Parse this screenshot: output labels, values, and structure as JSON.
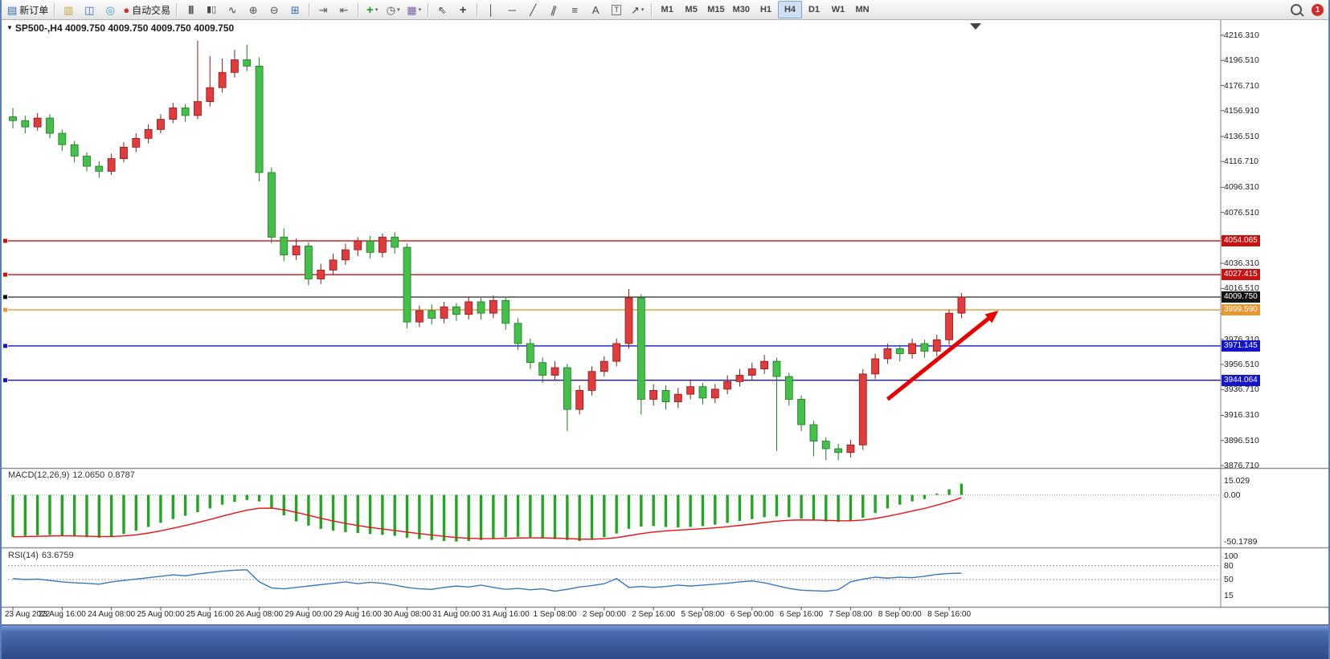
{
  "toolbar": {
    "items": [
      {
        "t": "btn",
        "name": "new-order-button",
        "glyph": "▤",
        "color": "#2f6db8",
        "label": "新订单"
      },
      {
        "t": "sep"
      },
      {
        "t": "btn",
        "name": "charts-cascade-button",
        "glyph": "▥",
        "color": "#c8a63c"
      },
      {
        "t": "btn",
        "name": "market-watch-button",
        "glyph": "◫",
        "color": "#2f6db8"
      },
      {
        "t": "btn",
        "name": "navigator-button",
        "glyph": "◎",
        "color": "#2e9bbf"
      },
      {
        "t": "btn",
        "name": "autotrading-button",
        "glyph": "●",
        "color": "#d03030",
        "label": "自动交易"
      },
      {
        "t": "sep"
      },
      {
        "t": "btn",
        "name": "bar-chart-button",
        "glyph": "|||",
        "color": "#444",
        "cls": "bars"
      },
      {
        "t": "btn",
        "name": "candle-chart-button",
        "glyph": "▮▯",
        "color": "#444",
        "cls": "small"
      },
      {
        "t": "btn",
        "name": "line-chart-button",
        "glyph": "∿",
        "color": "#444"
      },
      {
        "t": "btn",
        "name": "zoom-in-button",
        "glyph": "⊕",
        "color": "#555"
      },
      {
        "t": "btn",
        "name": "zoom-out-button",
        "glyph": "⊖",
        "color": "#555"
      },
      {
        "t": "btn",
        "name": "tile-windows-button",
        "glyph": "⊞",
        "color": "#2f6db8"
      },
      {
        "t": "sep"
      },
      {
        "t": "btn",
        "name": "chart-shift-button",
        "glyph": "⇥",
        "color": "#555"
      },
      {
        "t": "btn",
        "name": "auto-scroll-button",
        "glyph": "⇤",
        "color": "#555"
      },
      {
        "t": "sep"
      },
      {
        "t": "btn",
        "name": "indicators-button",
        "glyph": "+",
        "color": "#18a018",
        "cls": "plus",
        "caret": true
      },
      {
        "t": "btn",
        "name": "periods-button",
        "glyph": "◷",
        "color": "#555",
        "caret": true
      },
      {
        "t": "btn",
        "name": "templates-button",
        "glyph": "▦",
        "color": "#7a5fb5",
        "caret": true
      },
      {
        "t": "sep"
      },
      {
        "t": "btn",
        "name": "cursor-button",
        "glyph": "⇖",
        "color": "#444"
      },
      {
        "t": "btn",
        "name": "crosshair-button",
        "glyph": "+",
        "color": "#444",
        "cls": "plus"
      },
      {
        "t": "sep"
      },
      {
        "t": "btn",
        "name": "vertical-line-button",
        "glyph": "│",
        "color": "#444"
      },
      {
        "t": "btn",
        "name": "horizontal-line-button",
        "glyph": "─",
        "color": "#444"
      },
      {
        "t": "btn",
        "name": "trendline-button",
        "glyph": "╱",
        "color": "#444"
      },
      {
        "t": "btn",
        "name": "channel-button",
        "glyph": "∥",
        "color": "#444",
        "cls": "tilt"
      },
      {
        "t": "btn",
        "name": "fibonacci-button",
        "glyph": "≡",
        "color": "#444"
      },
      {
        "t": "btn",
        "name": "text-button",
        "glyph": "A",
        "color": "#444"
      },
      {
        "t": "btn",
        "name": "text-label-button",
        "glyph": "T",
        "color": "#444",
        "cls": "boxed"
      },
      {
        "t": "btn",
        "name": "arrows-button",
        "glyph": "↗",
        "color": "#444",
        "caret": true
      },
      {
        "t": "sep"
      },
      {
        "t": "tf",
        "label": "M1"
      },
      {
        "t": "tf",
        "label": "M5"
      },
      {
        "t": "tf",
        "label": "M15"
      },
      {
        "t": "tf",
        "label": "M30"
      },
      {
        "t": "tf",
        "label": "H1"
      },
      {
        "t": "tf",
        "label": "H4"
      },
      {
        "t": "tf",
        "label": "D1"
      },
      {
        "t": "tf",
        "label": "W1"
      },
      {
        "t": "tf",
        "label": "MN"
      }
    ],
    "active_timeframe": "H4",
    "notification_count": "1"
  },
  "chart": {
    "marker_glyph": "▼",
    "title": "SP500-,H4  4009.750 4009.750 4009.750 4009.750",
    "price_scale": [
      {
        "label": "4216.310"
      },
      {
        "label": "4196.510"
      },
      {
        "label": "4176.710"
      },
      {
        "label": "4156.910"
      },
      {
        "label": "4136.510"
      },
      {
        "label": "4116.710"
      },
      {
        "label": "4096.310"
      },
      {
        "label": "4076.510"
      },
      {
        "label": "4056.710",
        "covered": true
      },
      {
        "label": "4036.310"
      },
      {
        "label": "4016.510"
      },
      {
        "label": "3996.710",
        "covered": true
      },
      {
        "label": "3976.310"
      },
      {
        "label": "3956.510"
      },
      {
        "label": "3936.710"
      },
      {
        "label": "3916.310"
      },
      {
        "label": "3896.510"
      },
      {
        "label": "3876.710"
      }
    ],
    "price_lines": [
      {
        "price": 4054.065,
        "label": "4054.065",
        "color": "#cc1111"
      },
      {
        "price": 4027.415,
        "label": "4027.415",
        "color": "#cc1111"
      },
      {
        "price": 4009.75,
        "label": "4009.750",
        "color": "#111111",
        "current": true
      },
      {
        "price": 3999.59,
        "label": "3999.590",
        "color": "#e8962e"
      },
      {
        "price": 3971.145,
        "label": "3971.145",
        "color": "#1414cc"
      },
      {
        "price": 3944.064,
        "label": "3944.064",
        "color": "#1414cc"
      }
    ],
    "arrow": {
      "from": {
        "bar": 71,
        "price": 3929
      },
      "to": {
        "bar": 80,
        "price": 3999
      },
      "color": "#e60000"
    }
  },
  "chart_data": {
    "type": "candlestick",
    "symbol": "SP500-",
    "timeframe": "H4",
    "ohlc_current": {
      "open": "4009.750",
      "high": "4009.750",
      "low": "4009.750",
      "close": "4009.750"
    },
    "price_axis_range": [
      3876.71,
      4216.31
    ],
    "up_color": "#e23b3b",
    "down_color": "#44c04a",
    "up_stroke": "#8b1a1a",
    "down_stroke": "#1e7a23",
    "bars_per_label": 4,
    "time_labels": [
      "23 Aug 2022",
      "23 Aug 16:00",
      "24 Aug 08:00",
      "25 Aug 00:00",
      "25 Aug 16:00",
      "26 Aug 08:00",
      "29 Aug 00:00",
      "29 Aug 16:00",
      "30 Aug 08:00",
      "31 Aug 00:00",
      "31 Aug 16:00",
      "1 Sep 08:00",
      "2 Sep 00:00",
      "2 Sep 16:00",
      "5 Sep 08:00",
      "6 Sep 00:00",
      "6 Sep 16:00",
      "7 Sep 08:00",
      "8 Sep 00:00",
      "8 Sep 16:00"
    ],
    "candles": [
      [
        4152,
        4159,
        4143,
        4149
      ],
      [
        4149,
        4153,
        4139,
        4144
      ],
      [
        4144,
        4155,
        4141,
        4151
      ],
      [
        4151,
        4154,
        4135,
        4139
      ],
      [
        4139,
        4142,
        4125,
        4130
      ],
      [
        4130,
        4133,
        4116,
        4121
      ],
      [
        4121,
        4124,
        4109,
        4113
      ],
      [
        4113,
        4117,
        4104,
        4109
      ],
      [
        4109,
        4123,
        4106,
        4119
      ],
      [
        4119,
        4132,
        4116,
        4128
      ],
      [
        4128,
        4139,
        4124,
        4135
      ],
      [
        4135,
        4146,
        4131,
        4142
      ],
      [
        4142,
        4154,
        4139,
        4150
      ],
      [
        4150,
        4163,
        4147,
        4159
      ],
      [
        4159,
        4162,
        4148,
        4153
      ],
      [
        4153,
        4212,
        4150,
        4164
      ],
      [
        4164,
        4200,
        4160,
        4175
      ],
      [
        4175,
        4198,
        4171,
        4187
      ],
      [
        4187,
        4205,
        4183,
        4197
      ],
      [
        4197,
        4209,
        4188,
        4192
      ],
      [
        4192,
        4199,
        4101,
        4108
      ],
      [
        4108,
        4112,
        4052,
        4057
      ],
      [
        4057,
        4064,
        4038,
        4043
      ],
      [
        4043,
        4056,
        4039,
        4050
      ],
      [
        4050,
        4053,
        4019,
        4024
      ],
      [
        4024,
        4036,
        4020,
        4031
      ],
      [
        4031,
        4044,
        4027,
        4039
      ],
      [
        4039,
        4052,
        4035,
        4047
      ],
      [
        4047,
        4057,
        4042,
        4054
      ],
      [
        4054,
        4058,
        4040,
        4045
      ],
      [
        4045,
        4060,
        4041,
        4057
      ],
      [
        4057,
        4061,
        4044,
        4049
      ],
      [
        4049,
        4052,
        3985,
        3990
      ],
      [
        3990,
        4003,
        3986,
        3999
      ],
      [
        3999,
        4004,
        3988,
        3993
      ],
      [
        3993,
        4006,
        3989,
        4002
      ],
      [
        4002,
        4005,
        3991,
        3996
      ],
      [
        3996,
        4010,
        3992,
        4006
      ],
      [
        4006,
        4009,
        3992,
        3997
      ],
      [
        3997,
        4011,
        3993,
        4007
      ],
      [
        4007,
        4010,
        3984,
        3989
      ],
      [
        3989,
        3993,
        3968,
        3973
      ],
      [
        3973,
        3977,
        3953,
        3958
      ],
      [
        3958,
        3962,
        3942,
        3948
      ],
      [
        3948,
        3959,
        3944,
        3954
      ],
      [
        3954,
        3957,
        3904,
        3921
      ],
      [
        3921,
        3940,
        3917,
        3936
      ],
      [
        3936,
        3955,
        3932,
        3951
      ],
      [
        3951,
        3963,
        3947,
        3959
      ],
      [
        3959,
        3977,
        3955,
        3973
      ],
      [
        3973,
        4016,
        3969,
        4009
      ],
      [
        4009,
        4012,
        3917,
        3929
      ],
      [
        3929,
        3941,
        3924,
        3936
      ],
      [
        3936,
        3940,
        3921,
        3927
      ],
      [
        3927,
        3938,
        3922,
        3933
      ],
      [
        3933,
        3944,
        3929,
        3939
      ],
      [
        3939,
        3942,
        3925,
        3930
      ],
      [
        3930,
        3941,
        3926,
        3937
      ],
      [
        3937,
        3948,
        3933,
        3943
      ],
      [
        3943,
        3953,
        3939,
        3948
      ],
      [
        3948,
        3958,
        3944,
        3953
      ],
      [
        3953,
        3964,
        3949,
        3959
      ],
      [
        3959,
        3962,
        3888,
        3947
      ],
      [
        3947,
        3950,
        3924,
        3929
      ],
      [
        3929,
        3932,
        3904,
        3909
      ],
      [
        3909,
        3912,
        3884,
        3896
      ],
      [
        3896,
        3899,
        3881,
        3890
      ],
      [
        3890,
        3894,
        3881,
        3887
      ],
      [
        3887,
        3897,
        3883,
        3893
      ],
      [
        3893,
        3953,
        3889,
        3949
      ],
      [
        3949,
        3965,
        3945,
        3961
      ],
      [
        3961,
        3973,
        3957,
        3969
      ],
      [
        3969,
        3972,
        3959,
        3965
      ],
      [
        3965,
        3977,
        3961,
        3973
      ],
      [
        3973,
        3976,
        3962,
        3967
      ],
      [
        3967,
        3980,
        3963,
        3976
      ],
      [
        3976,
        4000,
        3972,
        3997
      ],
      [
        3997,
        4013,
        3993,
        4009.75
      ]
    ]
  },
  "macd": {
    "title": "MACD(12,26,9)",
    "main_value": "12.0650",
    "signal_value": "0.8787",
    "scale": [
      "15.029",
      "0.00",
      "-50.1789"
    ],
    "hist_color": "#22a522",
    "signal_color": "#ee1111",
    "histogram": [
      -45,
      -44,
      -43.5,
      -43,
      -43.5,
      -44.5,
      -45.5,
      -46,
      -44.5,
      -42,
      -38.5,
      -34.5,
      -30,
      -26,
      -22.5,
      -18.5,
      -14.5,
      -10.5,
      -7.5,
      -5.5,
      -7,
      -14,
      -22,
      -28.5,
      -33,
      -36.5,
      -38.5,
      -40,
      -41,
      -42,
      -43,
      -44,
      -46,
      -47.5,
      -48.5,
      -49.5,
      -50.2,
      -49.5,
      -48.5,
      -47,
      -45.5,
      -45,
      -45.5,
      -46.5,
      -47.5,
      -48.5,
      -49.5,
      -48,
      -45.5,
      -41.5,
      -36.5,
      -34,
      -33.5,
      -34.5,
      -35,
      -34.5,
      -33.5,
      -32,
      -30,
      -28,
      -26,
      -24,
      -23,
      -24,
      -25.5,
      -27.5,
      -28.5,
      -29,
      -28,
      -24.5,
      -19.5,
      -14.5,
      -10.5,
      -7,
      -4.5,
      1.5,
      6,
      12.065
    ]
  },
  "rsi": {
    "title": "RSI(14)",
    "value": "63.6759",
    "scale": [
      "100",
      "80",
      "50",
      "15"
    ],
    "levels": [
      80,
      50
    ],
    "line_color": "#3779bd",
    "values": [
      52,
      50,
      51,
      48,
      45,
      43,
      42,
      40,
      45,
      48,
      51,
      54,
      57,
      60,
      58,
      62,
      65,
      68,
      70,
      71,
      45,
      32,
      30,
      33,
      36,
      39,
      42,
      45,
      41,
      44,
      42,
      38,
      33,
      30,
      29,
      33,
      36,
      34,
      38,
      33,
      29,
      31,
      28,
      30,
      25,
      29,
      34,
      37,
      41,
      52,
      33,
      35,
      33,
      35,
      38,
      36,
      38,
      40,
      42,
      45,
      47,
      43,
      37,
      31,
      27,
      26,
      25,
      28,
      45,
      51,
      55,
      53,
      55,
      54,
      57,
      61,
      63,
      63.6759
    ]
  }
}
